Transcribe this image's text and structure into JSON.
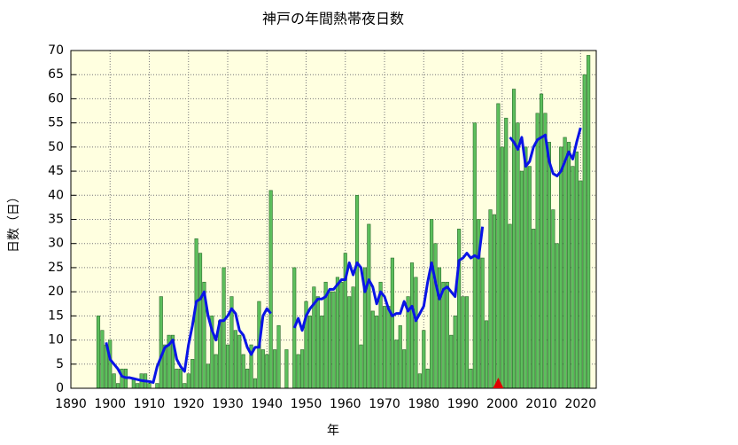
{
  "chart_data": {
    "type": "bar",
    "title": "神戸の年間熱帯夜日数",
    "xlabel": "年",
    "ylabel": "日数（日）",
    "xlim": [
      1890,
      2024
    ],
    "ylim": [
      0,
      70
    ],
    "xticks": [
      1890,
      1900,
      1910,
      1920,
      1930,
      1940,
      1950,
      1960,
      1970,
      1980,
      1990,
      2000,
      2010,
      2020
    ],
    "yticks": [
      0,
      5,
      10,
      15,
      20,
      25,
      30,
      35,
      40,
      45,
      50,
      55,
      60,
      65,
      70
    ],
    "grid": true,
    "background": "#ffffe0",
    "x": [
      1897,
      1898,
      1899,
      1900,
      1901,
      1902,
      1903,
      1904,
      1905,
      1906,
      1907,
      1908,
      1909,
      1910,
      1911,
      1912,
      1913,
      1914,
      1915,
      1916,
      1917,
      1918,
      1919,
      1920,
      1921,
      1922,
      1923,
      1924,
      1925,
      1926,
      1927,
      1928,
      1929,
      1930,
      1931,
      1932,
      1933,
      1934,
      1935,
      1936,
      1937,
      1938,
      1939,
      1940,
      1941,
      1942,
      1943,
      1944,
      1945,
      1946,
      1947,
      1948,
      1949,
      1950,
      1951,
      1952,
      1953,
      1954,
      1955,
      1956,
      1957,
      1958,
      1959,
      1960,
      1961,
      1962,
      1963,
      1964,
      1965,
      1966,
      1967,
      1968,
      1969,
      1970,
      1971,
      1972,
      1973,
      1974,
      1975,
      1976,
      1977,
      1978,
      1979,
      1980,
      1981,
      1982,
      1983,
      1984,
      1985,
      1986,
      1987,
      1988,
      1989,
      1990,
      1991,
      1992,
      1993,
      1994,
      1995,
      1996,
      1997,
      1998,
      1999,
      2000,
      2001,
      2002,
      2003,
      2004,
      2005,
      2006,
      2007,
      2008,
      2009,
      2010,
      2011,
      2012,
      2013,
      2014,
      2015,
      2016,
      2017,
      2018,
      2019,
      2020,
      2021,
      2022
    ],
    "series": [
      {
        "type": "bar",
        "color": "#5cbf5c",
        "values": [
          15,
          12,
          9,
          10,
          3,
          1,
          4,
          4,
          0,
          2,
          1,
          3,
          3,
          1,
          0,
          1,
          19,
          9,
          11,
          11,
          4,
          4,
          1,
          3,
          6,
          31,
          28,
          22,
          5,
          15,
          7,
          14,
          25,
          9,
          19,
          12,
          11,
          7,
          4,
          9,
          2,
          18,
          8,
          7,
          41,
          8,
          13,
          null,
          8,
          null,
          25,
          7,
          8,
          18,
          15,
          21,
          19,
          15,
          22,
          20,
          20,
          23,
          22,
          28,
          19,
          21,
          40,
          9,
          25,
          34,
          16,
          15,
          22,
          17,
          17,
          27,
          10,
          13,
          8,
          19,
          26,
          23,
          3,
          12,
          4,
          35,
          30,
          25,
          22,
          22,
          11,
          15,
          33,
          19,
          19,
          4,
          55,
          35,
          27,
          14,
          37,
          36,
          59,
          50,
          56,
          34,
          62,
          55,
          45,
          50,
          46,
          33,
          57,
          61,
          57,
          51,
          37,
          30,
          50,
          52,
          51,
          46,
          49,
          43,
          65,
          69
        ]
      },
      {
        "type": "line",
        "color": "#0a14e6",
        "values": [
          null,
          null,
          9.5,
          6,
          5,
          4,
          2.5,
          2.2,
          2.2,
          2,
          1.8,
          1.6,
          1.5,
          1.4,
          1.2,
          4.5,
          6.5,
          8.5,
          9,
          10,
          6,
          4.5,
          3.5,
          9,
          13,
          18,
          18.5,
          20,
          15,
          12,
          10,
          14,
          14,
          15,
          16.5,
          15.5,
          12,
          11,
          8.5,
          7,
          8.5,
          8.5,
          15,
          16.5,
          15.5,
          null,
          null,
          null,
          null,
          null,
          12.5,
          14.5,
          12,
          15,
          16.5,
          17.5,
          18.5,
          18.5,
          19,
          20.5,
          20.5,
          21.5,
          22.5,
          22.5,
          26,
          23.5,
          26,
          25,
          20,
          22.5,
          21,
          17.5,
          20,
          19,
          16.5,
          15,
          15.5,
          15.5,
          18,
          16,
          17,
          14,
          15.5,
          17,
          22,
          26,
          22,
          18.5,
          20.5,
          21,
          20,
          19,
          26.5,
          27,
          28,
          27,
          27.5,
          27,
          33.5,
          null,
          null,
          null,
          null,
          null,
          null,
          52,
          51,
          49.5,
          52,
          46,
          47,
          50,
          51.5,
          52,
          52.5,
          47,
          44.5,
          44,
          45,
          47,
          49,
          47.5,
          51,
          54,
          null,
          null
        ]
      }
    ],
    "marker": {
      "x": 1999,
      "color": "#e00000"
    }
  }
}
